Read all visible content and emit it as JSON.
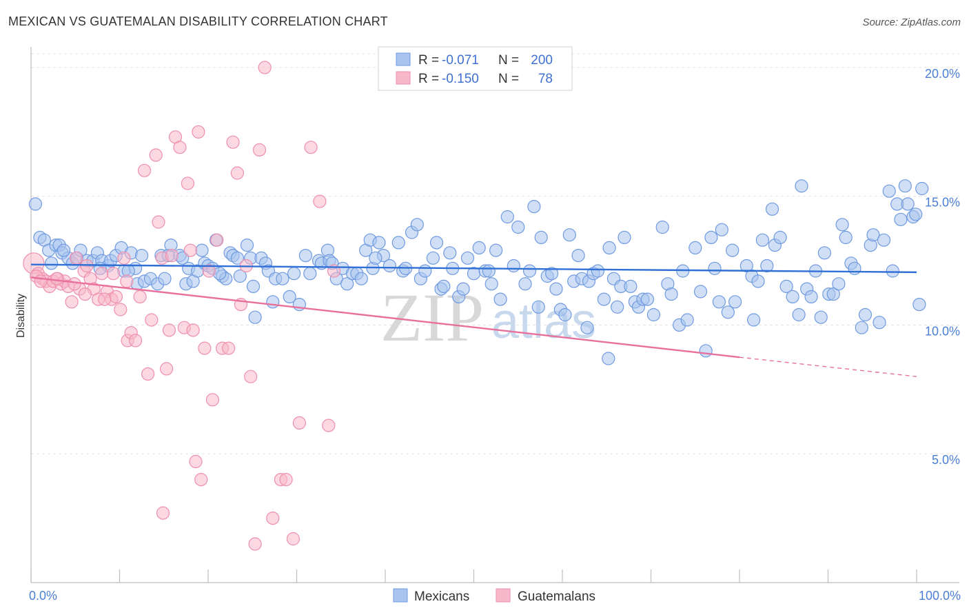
{
  "header": {
    "title": "MEXICAN VS GUATEMALAN DISABILITY CORRELATION CHART",
    "source": "Source: ZipAtlas.com"
  },
  "watermark": {
    "zip": "ZIP",
    "atlas": "atlas"
  },
  "stats_box": {
    "rows": [
      {
        "r_label": "R =",
        "r_value": "-0.071",
        "n_label": "N =",
        "n_value": "200",
        "color": "#a9c5ef"
      },
      {
        "r_label": "R =",
        "r_value": "-0.150",
        "n_label": "N =",
        "n_value": "78",
        "color": "#f7b8cb"
      }
    ]
  },
  "legend": {
    "items": [
      {
        "label": "Mexicans",
        "color": "#a9c5ef"
      },
      {
        "label": "Guatemalans",
        "color": "#f7b8cb"
      }
    ]
  },
  "chart_data": {
    "type": "scatter",
    "title": "MEXICAN VS GUATEMALAN DISABILITY CORRELATION CHART",
    "xlabel": "",
    "ylabel": "Disability",
    "xlim": [
      0,
      100
    ],
    "ylim": [
      0,
      20.8
    ],
    "x_tick_labels": [
      "0.0%",
      "100.0%"
    ],
    "y_ticks": [
      5,
      10,
      15,
      20
    ],
    "y_tick_labels": [
      "5.0%",
      "10.0%",
      "15.0%",
      "20.0%"
    ],
    "grid": true,
    "legend_position": "bottom-center",
    "series": [
      {
        "name": "Mexicans",
        "color": "#a9c5ef",
        "stroke": "#6f9ae0",
        "trend": {
          "x": [
            0,
            100
          ],
          "y": [
            12.35,
            12.05
          ],
          "color": "#2f6fd6"
        },
        "points": [
          [
            0.5,
            14.7
          ],
          [
            1,
            13.4
          ],
          [
            1.5,
            13.3
          ],
          [
            2,
            12.9
          ],
          [
            2.3,
            12.4
          ],
          [
            2.8,
            13.1
          ],
          [
            3.2,
            13.1
          ],
          [
            3.5,
            12.8
          ],
          [
            4.2,
            12.6
          ],
          [
            4.7,
            12.4
          ],
          [
            5.2,
            12.6
          ],
          [
            5.6,
            12.9
          ],
          [
            6.3,
            12.5
          ],
          [
            7,
            12.5
          ],
          [
            7.5,
            12.8
          ],
          [
            8,
            12.5
          ],
          [
            8.7,
            12.3
          ],
          [
            9,
            12.5
          ],
          [
            9.6,
            12.7
          ],
          [
            10.2,
            13.0
          ],
          [
            10.5,
            12.1
          ],
          [
            11.3,
            12.8
          ],
          [
            11.8,
            12.2
          ],
          [
            12,
            11.6
          ],
          [
            12.5,
            12.7
          ],
          [
            12.8,
            11.7
          ],
          [
            13.5,
            11.8
          ],
          [
            14.3,
            11.6
          ],
          [
            14.7,
            12.7
          ],
          [
            15.1,
            11.8
          ],
          [
            15.5,
            12.7
          ],
          [
            15.8,
            13.1
          ],
          [
            16.8,
            12.7
          ],
          [
            17.1,
            12.6
          ],
          [
            17.5,
            11.6
          ],
          [
            17.8,
            12.2
          ],
          [
            18.3,
            11.7
          ],
          [
            18.8,
            12.1
          ],
          [
            19.3,
            12.9
          ],
          [
            19.6,
            12.4
          ],
          [
            20,
            12.3
          ],
          [
            20.5,
            12.2
          ],
          [
            20.9,
            13.3
          ],
          [
            21.6,
            11.9
          ],
          [
            22,
            11.8
          ],
          [
            22.5,
            12.8
          ],
          [
            22.8,
            12.7
          ],
          [
            23.3,
            12.6
          ],
          [
            23.6,
            11.9
          ],
          [
            24.4,
            13.1
          ],
          [
            24.8,
            12.6
          ],
          [
            25.1,
            11.5
          ],
          [
            25.3,
            10.3
          ],
          [
            26,
            12.6
          ],
          [
            26.5,
            12.4
          ],
          [
            26.8,
            12.1
          ],
          [
            27.3,
            10.9
          ],
          [
            27.6,
            11.8
          ],
          [
            28.4,
            11.8
          ],
          [
            29.2,
            11.1
          ],
          [
            29.7,
            12.0
          ],
          [
            30.3,
            10.8
          ],
          [
            31,
            12.7
          ],
          [
            31.5,
            12.0
          ],
          [
            32.5,
            12.5
          ],
          [
            32.8,
            12.4
          ],
          [
            33.5,
            12.9
          ],
          [
            33.7,
            12.5
          ],
          [
            34,
            12.4
          ],
          [
            34.5,
            11.8
          ],
          [
            35.2,
            12.2
          ],
          [
            35.7,
            11.6
          ],
          [
            36.3,
            12.0
          ],
          [
            36.8,
            12.0
          ],
          [
            37.3,
            11.8
          ],
          [
            37.8,
            12.9
          ],
          [
            38.3,
            13.3
          ],
          [
            38.6,
            12.2
          ],
          [
            39.3,
            13.2
          ],
          [
            39.8,
            12.7
          ],
          [
            40.5,
            12.3
          ],
          [
            41.5,
            13.2
          ],
          [
            42,
            12.1
          ],
          [
            42.3,
            12.2
          ],
          [
            43,
            13.6
          ],
          [
            43.6,
            13.9
          ],
          [
            44,
            11.8
          ],
          [
            44.5,
            12.1
          ],
          [
            45.4,
            12.6
          ],
          [
            45.8,
            13.2
          ],
          [
            46.3,
            11.4
          ],
          [
            46.6,
            11.5
          ],
          [
            47.3,
            12.8
          ],
          [
            47.6,
            12.2
          ],
          [
            48.3,
            11.1
          ],
          [
            48.8,
            11.4
          ],
          [
            49.3,
            12.6
          ],
          [
            50,
            12.0
          ],
          [
            50.6,
            13.0
          ],
          [
            51.3,
            12.1
          ],
          [
            52,
            11.6
          ],
          [
            52.5,
            12.9
          ],
          [
            53,
            11.0
          ],
          [
            53.8,
            14.2
          ],
          [
            54.5,
            12.3
          ],
          [
            55,
            13.8
          ],
          [
            55.8,
            11.6
          ],
          [
            56.3,
            12.1
          ],
          [
            56.8,
            14.6
          ],
          [
            57.3,
            10.7
          ],
          [
            57.6,
            13.4
          ],
          [
            58.3,
            11.9
          ],
          [
            58.8,
            12.0
          ],
          [
            59.3,
            11.4
          ],
          [
            59.8,
            10.6
          ],
          [
            60.3,
            10.4
          ],
          [
            60.8,
            13.5
          ],
          [
            61.3,
            11.7
          ],
          [
            61.8,
            12.7
          ],
          [
            62.2,
            11.8
          ],
          [
            62.8,
            9.9
          ],
          [
            63,
            11.7
          ],
          [
            63.5,
            12.0
          ],
          [
            64,
            12.1
          ],
          [
            64.7,
            11.0
          ],
          [
            65.3,
            13.0
          ],
          [
            65.8,
            11.8
          ],
          [
            66.2,
            10.7
          ],
          [
            66.6,
            11.5
          ],
          [
            67,
            13.4
          ],
          [
            67.7,
            11.5
          ],
          [
            68.2,
            10.9
          ],
          [
            68.6,
            10.7
          ],
          [
            69.1,
            11.0
          ],
          [
            69.6,
            11.0
          ],
          [
            70.3,
            10.4
          ],
          [
            71.3,
            13.8
          ],
          [
            71.9,
            11.6
          ],
          [
            72.3,
            11.2
          ],
          [
            73.2,
            10.0
          ],
          [
            73.6,
            12.1
          ],
          [
            74.1,
            10.2
          ],
          [
            75,
            13.0
          ],
          [
            75.6,
            11.3
          ],
          [
            76.2,
            9.0
          ],
          [
            76.8,
            13.4
          ],
          [
            77.2,
            12.2
          ],
          [
            77.7,
            10.9
          ],
          [
            78,
            13.7
          ],
          [
            78.7,
            10.5
          ],
          [
            79.2,
            12.9
          ],
          [
            79.5,
            10.9
          ],
          [
            80.8,
            12.3
          ],
          [
            81.4,
            11.9
          ],
          [
            81.6,
            10.2
          ],
          [
            82.1,
            11.7
          ],
          [
            82.6,
            13.3
          ],
          [
            83.1,
            12.3
          ],
          [
            83.7,
            14.5
          ],
          [
            84,
            13.1
          ],
          [
            84.6,
            13.4
          ],
          [
            85.3,
            11.5
          ],
          [
            86,
            11.1
          ],
          [
            86.7,
            10.4
          ],
          [
            87,
            15.4
          ],
          [
            87.6,
            11.4
          ],
          [
            88.1,
            11.1
          ],
          [
            88.6,
            12.1
          ],
          [
            89.2,
            10.3
          ],
          [
            89.6,
            12.8
          ],
          [
            90.1,
            11.2
          ],
          [
            90.6,
            11.2
          ],
          [
            91.2,
            11.6
          ],
          [
            91.6,
            13.9
          ],
          [
            92,
            13.4
          ],
          [
            92.6,
            12.4
          ],
          [
            93,
            12.2
          ],
          [
            93.8,
            9.9
          ],
          [
            94.2,
            10.4
          ],
          [
            94.8,
            13.1
          ],
          [
            95.1,
            13.5
          ],
          [
            95.8,
            10.1
          ],
          [
            96.3,
            13.3
          ],
          [
            96.9,
            15.2
          ],
          [
            97.3,
            12.1
          ],
          [
            97.8,
            14.7
          ],
          [
            98.2,
            14.1
          ],
          [
            98.7,
            15.4
          ],
          [
            99,
            14.7
          ],
          [
            99.6,
            14.2
          ],
          [
            99.9,
            14.3
          ],
          [
            100.6,
            15.3
          ],
          [
            100.3,
            10.8
          ],
          [
            65.2,
            8.7
          ],
          [
            38.9,
            12.6
          ],
          [
            51.7,
            12.1
          ],
          [
            21.3,
            12.0
          ],
          [
            7.8,
            12.2
          ],
          [
            3.7,
            12.9
          ],
          [
            11,
            12.1
          ]
        ]
      },
      {
        "name": "Guatemalans",
        "color": "#f7b8cb",
        "stroke": "#ee8fae",
        "trend": {
          "x": [
            0,
            80
          ],
          "y": [
            11.85,
            8.75
          ],
          "x_dashed_to": 100,
          "y_dashed_to": 8.0,
          "color": "#e8709c"
        },
        "points": [
          [
            0.3,
            12.4
          ],
          [
            0.8,
            12.0
          ],
          [
            1.3,
            11.8
          ],
          [
            1.7,
            11.7
          ],
          [
            2.1,
            11.5
          ],
          [
            2.5,
            11.7
          ],
          [
            3,
            11.8
          ],
          [
            3.4,
            11.6
          ],
          [
            3.8,
            11.7
          ],
          [
            4.2,
            11.5
          ],
          [
            4.6,
            10.9
          ],
          [
            5.1,
            12.6
          ],
          [
            5.5,
            11.4
          ],
          [
            6,
            12.1
          ],
          [
            6.3,
            12.3
          ],
          [
            6.7,
            11.8
          ],
          [
            7.1,
            11.4
          ],
          [
            7.6,
            11.0
          ],
          [
            8,
            12.0
          ],
          [
            8.6,
            11.3
          ],
          [
            9.1,
            11.0
          ],
          [
            9.6,
            11.1
          ],
          [
            10.1,
            10.6
          ],
          [
            10.5,
            12.6
          ],
          [
            10.9,
            9.4
          ],
          [
            11.3,
            9.7
          ],
          [
            11.8,
            9.4
          ],
          [
            12.3,
            11.1
          ],
          [
            12.8,
            16.0
          ],
          [
            13.2,
            8.1
          ],
          [
            13.6,
            10.2
          ],
          [
            14.1,
            16.6
          ],
          [
            14.4,
            14.0
          ],
          [
            14.8,
            12.6
          ],
          [
            15.3,
            8.3
          ],
          [
            15.6,
            9.8
          ],
          [
            15.9,
            12.7
          ],
          [
            16.3,
            17.3
          ],
          [
            16.8,
            16.9
          ],
          [
            17.3,
            9.9
          ],
          [
            17.7,
            15.5
          ],
          [
            18,
            12.9
          ],
          [
            18.3,
            9.8
          ],
          [
            18.6,
            4.7
          ],
          [
            18.9,
            17.5
          ],
          [
            19.2,
            4.0
          ],
          [
            19.6,
            9.1
          ],
          [
            20.1,
            12.1
          ],
          [
            20.5,
            7.1
          ],
          [
            21,
            13.3
          ],
          [
            21.6,
            9.1
          ],
          [
            22.3,
            9.1
          ],
          [
            22.8,
            17.1
          ],
          [
            23.3,
            15.9
          ],
          [
            23.7,
            10.8
          ],
          [
            24.3,
            12.3
          ],
          [
            24.8,
            8.0
          ],
          [
            25.3,
            1.5
          ],
          [
            25.8,
            16.8
          ],
          [
            26.4,
            20.0
          ],
          [
            27.3,
            2.5
          ],
          [
            28.2,
            4.0
          ],
          [
            28.8,
            4.0
          ],
          [
            29.6,
            1.7
          ],
          [
            30.3,
            6.2
          ],
          [
            31.6,
            16.9
          ],
          [
            32.6,
            14.8
          ],
          [
            33.6,
            6.1
          ],
          [
            34.2,
            12.1
          ],
          [
            14.9,
            2.7
          ],
          [
            0.6,
            11.9
          ],
          [
            1.1,
            11.7
          ],
          [
            2.9,
            11.8
          ],
          [
            4.9,
            11.6
          ],
          [
            6.1,
            11.2
          ],
          [
            8.3,
            11.0
          ],
          [
            9.3,
            12.0
          ],
          [
            10.8,
            11.7
          ]
        ]
      }
    ]
  }
}
